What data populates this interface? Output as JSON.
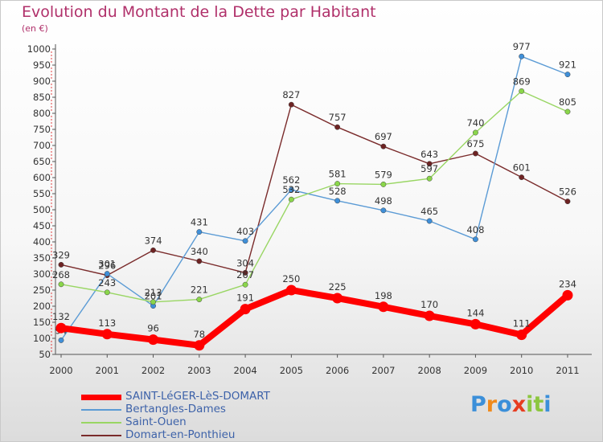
{
  "chart_data": {
    "type": "line",
    "title": "Evolution du Montant de la Dette par Habitant",
    "subtitle": "(en €)",
    "categories": [
      "2000",
      "2001",
      "2002",
      "2003",
      "2004",
      "2005",
      "2006",
      "2007",
      "2008",
      "2009",
      "2010",
      "2011"
    ],
    "ylim": [
      50,
      1000
    ],
    "yticks": [
      50,
      100,
      150,
      200,
      250,
      300,
      350,
      400,
      450,
      500,
      550,
      600,
      650,
      700,
      750,
      800,
      850,
      900,
      950,
      1000
    ],
    "grid": false,
    "legend_position": "bottom-left",
    "series": [
      {
        "name": "SAINT-LéGER-LèS-DOMART",
        "color": "#ff0000",
        "values": [
          132,
          113,
          96,
          78,
          191,
          250,
          225,
          198,
          170,
          144,
          111,
          234
        ]
      },
      {
        "name": "Bertangles-Dames",
        "color": "#5b9bd5",
        "values": [
          94,
          301,
          201,
          431,
          403,
          562,
          528,
          498,
          465,
          408,
          977,
          921
        ]
      },
      {
        "name": "Saint-Ouen",
        "color": "#99d663",
        "values": [
          268,
          243,
          213,
          221,
          267,
          532,
          581,
          579,
          597,
          740,
          869,
          805
        ]
      },
      {
        "name": "Domart-en-Ponthieu",
        "color": "#7a2b2b",
        "values": [
          329,
          296,
          374,
          340,
          304,
          827,
          757,
          697,
          643,
          675,
          601,
          526
        ]
      }
    ]
  },
  "logo": {
    "text": "Proxiti",
    "letters": [
      "P",
      "r",
      "o",
      "x",
      "i",
      "t",
      "i"
    ],
    "colors": [
      "#3b8fd9",
      "#f08a1c",
      "#3b8fd9",
      "#e73c20",
      "#8cc63f",
      "#8cc63f",
      "#3b8fd9"
    ]
  }
}
